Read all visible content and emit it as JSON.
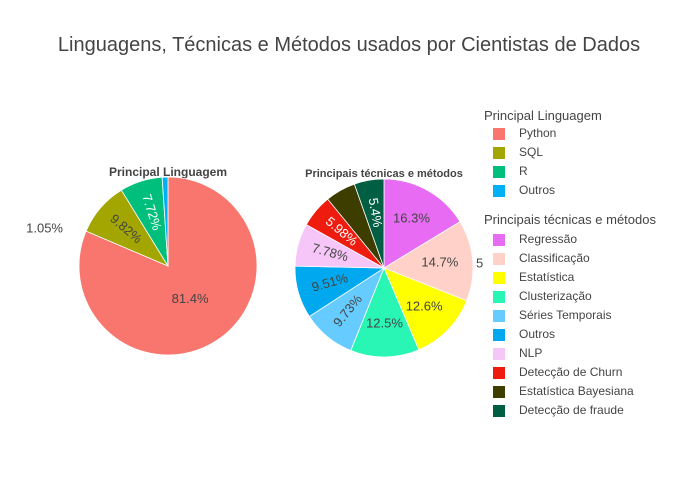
{
  "chart_data": {
    "type": "pie",
    "title": "Linguagens, Técnicas e Métodos usados por Cientistas de Dados",
    "charts": [
      {
        "title": "Principal Linguagem",
        "legend_title": "Principal Linguagem",
        "labels": [
          "Python",
          "SQL",
          "R",
          "Outros"
        ],
        "values": [
          81.4,
          9.82,
          7.72,
          1.05
        ],
        "text": [
          "81.4%",
          "9.82%",
          "7.72%",
          "1.05%"
        ],
        "colors": [
          "#f8766d",
          "#a3a500",
          "#00bf7d",
          "#00b0f6"
        ]
      },
      {
        "title": "Principais técnicas e métodos",
        "legend_title": "Principais técnicas e métodos",
        "labels": [
          "Regressão",
          "Classificação",
          "Estatística",
          "Clusterização",
          "Séries Temporais",
          "Outros",
          "NLP",
          "Detecção de Churn",
          "Estatística Bayesiana",
          "Detecção de fraude"
        ],
        "values": [
          16.3,
          14.7,
          12.6,
          12.5,
          9.73,
          9.51,
          7.78,
          5.98,
          5.5,
          5.4
        ],
        "text": [
          "16.3%",
          "14.7%",
          "12.6%",
          "12.5%",
          "9.73%",
          "9.51%",
          "7.78%",
          "5.98%",
          "5",
          "5.4%"
        ],
        "colors": [
          "#e76bf3",
          "#ffd1c9",
          "#ffff00",
          "#29f5b5",
          "#66ccff",
          "#00a9ef",
          "#f5c6f7",
          "#ee1c0e",
          "#3d3d00",
          "#005f43"
        ]
      }
    ],
    "legend_position": "right"
  }
}
